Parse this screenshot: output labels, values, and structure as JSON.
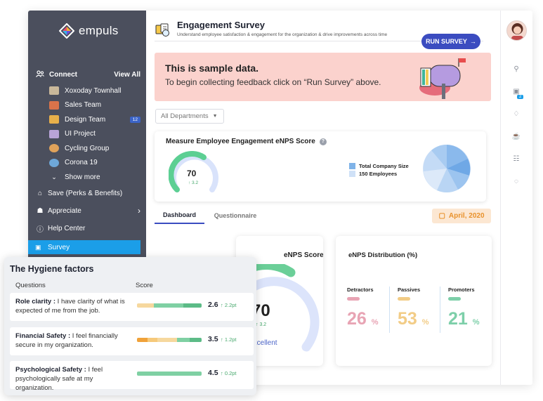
{
  "app": {
    "logo_text": "empuls"
  },
  "sidebar": {
    "connect_label": "Connect",
    "view_all": "View All",
    "groups": [
      {
        "label": "Xoxoday Townhall",
        "icon": "townhall-icon",
        "badge": ""
      },
      {
        "label": "Sales Team",
        "icon": "sales-icon",
        "badge": ""
      },
      {
        "label": "Design Team",
        "icon": "design-icon",
        "badge": "12"
      },
      {
        "label": "UI Project",
        "icon": "project-icon",
        "badge": ""
      },
      {
        "label": "Cycling Group",
        "icon": "cycling-icon",
        "badge": ""
      },
      {
        "label": "Corona 19",
        "icon": "globe-icon",
        "badge": ""
      },
      {
        "label": "Show more",
        "icon": "chevron-down-icon",
        "badge": ""
      }
    ],
    "save_label": "Save (Perks & Benefits)",
    "appreciate_label": "Appreciate",
    "help_label": "Help Center",
    "survey_label": "Survey"
  },
  "header": {
    "title": "Engagement Survey",
    "subtitle": "Understand employee satisfaction & engagement for the organization & drive improvements across time",
    "run_button": "RUN SURVEY"
  },
  "banner": {
    "title": "This is sample data.",
    "text": "To begin collecting feedback click on “Run Survey” above."
  },
  "filter": {
    "department": "All Departments"
  },
  "enps_summary": {
    "title": "Measure Employee Engagement eNPS Score",
    "score": "70",
    "delta": "↑ 3.2",
    "score_fraction": 0.7,
    "legend_size_label": "Total Company Size",
    "legend_employees_label": "150 Employees",
    "legend_colors": [
      "#7fb3e8",
      "#cfe1f7"
    ]
  },
  "tabs": {
    "dashboard": "Dashboard",
    "questionnaire": "Questionnaire"
  },
  "date_pill": "April, 2020",
  "score_card": {
    "title": "eNPS Score",
    "value": "70",
    "delta": "↑ 3.2",
    "label": "Excellent",
    "fraction": 0.7
  },
  "distribution": {
    "title": "eNPS Distribution (%)",
    "items": [
      {
        "label": "Detractors",
        "value": "26",
        "unit": "%",
        "color": "#e8a4b4"
      },
      {
        "label": "Passives",
        "value": "53",
        "unit": "%",
        "color": "#f2cc86"
      },
      {
        "label": "Promoters",
        "value": "21",
        "unit": "%",
        "color": "#7dcfa9"
      }
    ]
  },
  "hygiene": {
    "title": "The Hygiene factors",
    "col_questions": "Questions",
    "col_score": "Score",
    "rows": [
      {
        "bold": "Role clarity :",
        "text": " I have clarity of what is expected of me from the job.",
        "score": "2.6",
        "delta": "↑ 2.2pt"
      },
      {
        "bold": "Financial Safety :",
        "text": " I feel financially secure in my organization.",
        "score": "3.5",
        "delta": "↑ 1.2pt"
      },
      {
        "bold": "Psychological Safety :",
        "text": " I feel psychologically safe at my organization.",
        "score": "4.5",
        "delta": "↑ 0.2pt"
      }
    ]
  }
}
